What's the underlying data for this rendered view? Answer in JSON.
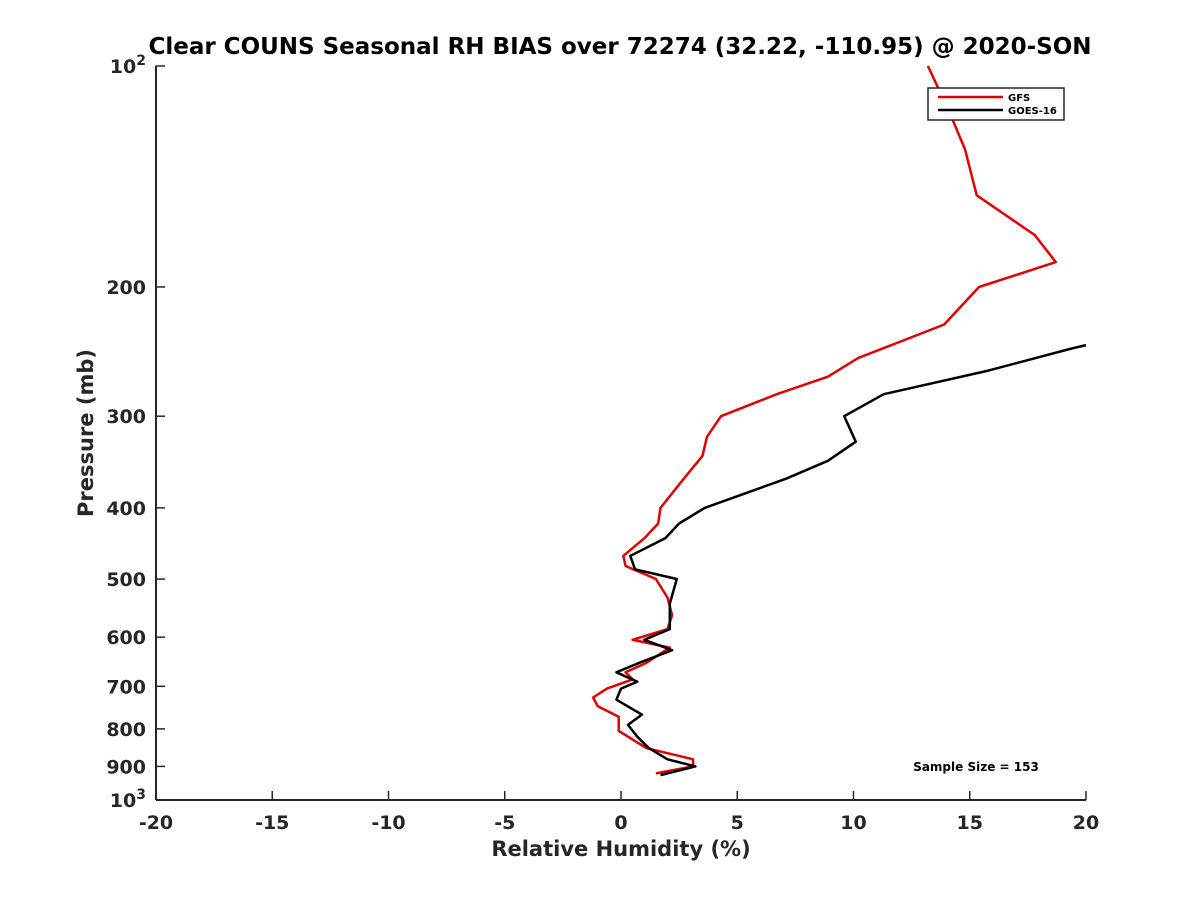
{
  "chart_data": {
    "type": "line",
    "title": "Clear COUNS Seasonal RH BIAS over 72274 (32.22, -110.95) @ 2020-SON",
    "xlabel": "Relative Humidity (%)",
    "ylabel": "Pressure (mb)",
    "xlim": [
      -20,
      20
    ],
    "ylim": [
      100,
      1000
    ],
    "y_scale": "log",
    "y_reversed": true,
    "grid": false,
    "legend_position": "top-right",
    "x_ticks": [
      {
        "value": -20,
        "label": "-20"
      },
      {
        "value": -15,
        "label": "-15"
      },
      {
        "value": -10,
        "label": "-10"
      },
      {
        "value": -5,
        "label": "-5"
      },
      {
        "value": 0,
        "label": "0"
      },
      {
        "value": 5,
        "label": "5"
      },
      {
        "value": 10,
        "label": "10"
      },
      {
        "value": 15,
        "label": "15"
      },
      {
        "value": 20,
        "label": "20"
      }
    ],
    "y_ticks": [
      {
        "value": 100,
        "base": "10",
        "exp": "2"
      },
      {
        "value": 200,
        "base": "200",
        "exp": ""
      },
      {
        "value": 300,
        "base": "300",
        "exp": ""
      },
      {
        "value": 400,
        "base": "400",
        "exp": ""
      },
      {
        "value": 500,
        "base": "500",
        "exp": ""
      },
      {
        "value": 600,
        "base": "600",
        "exp": ""
      },
      {
        "value": 700,
        "base": "700",
        "exp": ""
      },
      {
        "value": 800,
        "base": "800",
        "exp": ""
      },
      {
        "value": 900,
        "base": "900",
        "exp": ""
      },
      {
        "value": 1000,
        "base": "10",
        "exp": "3"
      }
    ],
    "series": [
      {
        "name": "GFS",
        "color": "#e00000",
        "points": [
          {
            "x": 13.2,
            "y": 100
          },
          {
            "x": 14.1,
            "y": 115
          },
          {
            "x": 14.8,
            "y": 130
          },
          {
            "x": 15.3,
            "y": 150
          },
          {
            "x": 17.8,
            "y": 170
          },
          {
            "x": 18.7,
            "y": 185
          },
          {
            "x": 15.4,
            "y": 200
          },
          {
            "x": 13.9,
            "y": 225
          },
          {
            "x": 10.2,
            "y": 250
          },
          {
            "x": 8.9,
            "y": 265
          },
          {
            "x": 6.7,
            "y": 280
          },
          {
            "x": 4.3,
            "y": 300
          },
          {
            "x": 3.7,
            "y": 320
          },
          {
            "x": 3.5,
            "y": 340
          },
          {
            "x": 2.7,
            "y": 365
          },
          {
            "x": 1.7,
            "y": 400
          },
          {
            "x": 1.6,
            "y": 420
          },
          {
            "x": 1.0,
            "y": 440
          },
          {
            "x": 0.1,
            "y": 465
          },
          {
            "x": 0.2,
            "y": 480
          },
          {
            "x": 1.5,
            "y": 500
          },
          {
            "x": 2.0,
            "y": 530
          },
          {
            "x": 2.2,
            "y": 560
          },
          {
            "x": 2.0,
            "y": 585
          },
          {
            "x": 0.5,
            "y": 605
          },
          {
            "x": 2.1,
            "y": 620
          },
          {
            "x": 1.1,
            "y": 650
          },
          {
            "x": 0.2,
            "y": 670
          },
          {
            "x": 0.5,
            "y": 685
          },
          {
            "x": -0.6,
            "y": 705
          },
          {
            "x": -1.2,
            "y": 725
          },
          {
            "x": -1.0,
            "y": 745
          },
          {
            "x": -0.1,
            "y": 770
          },
          {
            "x": -0.1,
            "y": 805
          },
          {
            "x": 1.1,
            "y": 850
          },
          {
            "x": 3.1,
            "y": 880
          },
          {
            "x": 3.1,
            "y": 900
          },
          {
            "x": 1.5,
            "y": 920
          }
        ]
      },
      {
        "name": "GOES-16",
        "color": "#000000",
        "points": [
          {
            "x": 20.0,
            "y": 240
          },
          {
            "x": 19.3,
            "y": 243
          },
          {
            "x": 15.8,
            "y": 260
          },
          {
            "x": 11.3,
            "y": 280
          },
          {
            "x": 9.6,
            "y": 300
          },
          {
            "x": 10.1,
            "y": 325
          },
          {
            "x": 8.9,
            "y": 345
          },
          {
            "x": 7.1,
            "y": 365
          },
          {
            "x": 3.6,
            "y": 400
          },
          {
            "x": 2.5,
            "y": 420
          },
          {
            "x": 1.9,
            "y": 440
          },
          {
            "x": 0.4,
            "y": 465
          },
          {
            "x": 0.6,
            "y": 485
          },
          {
            "x": 2.4,
            "y": 500
          },
          {
            "x": 2.1,
            "y": 540
          },
          {
            "x": 2.1,
            "y": 585
          },
          {
            "x": 1.0,
            "y": 605
          },
          {
            "x": 2.2,
            "y": 625
          },
          {
            "x": 0.8,
            "y": 650
          },
          {
            "x": -0.2,
            "y": 670
          },
          {
            "x": 0.7,
            "y": 690
          },
          {
            "x": 0.0,
            "y": 705
          },
          {
            "x": -0.2,
            "y": 730
          },
          {
            "x": 0.9,
            "y": 765
          },
          {
            "x": 0.3,
            "y": 790
          },
          {
            "x": 0.7,
            "y": 820
          },
          {
            "x": 1.2,
            "y": 850
          },
          {
            "x": 2.0,
            "y": 880
          },
          {
            "x": 3.2,
            "y": 900
          },
          {
            "x": 1.7,
            "y": 925
          }
        ]
      }
    ],
    "annotations": [
      {
        "text": "Sample Size = 153",
        "position": "bottom-right"
      }
    ]
  }
}
